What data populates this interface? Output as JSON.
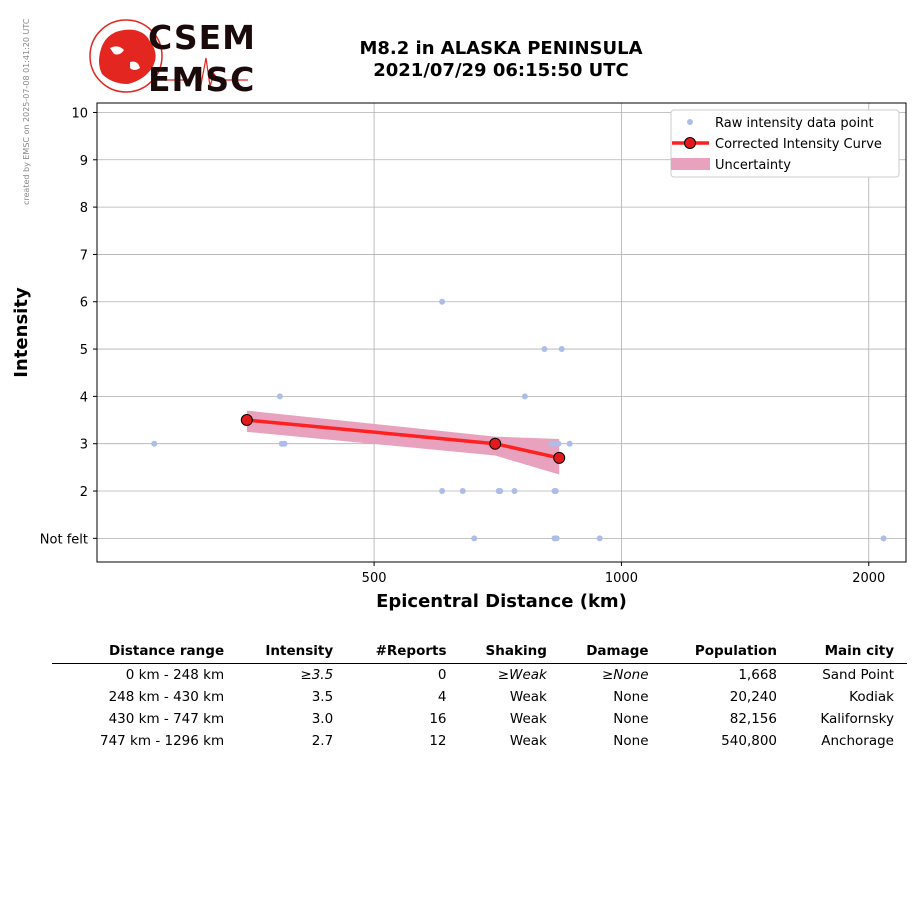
{
  "side_note": "created by EMSC on 2025-07-08 01:41:20 UTC",
  "logo": {
    "line1": "CSEM",
    "line2": "EMSC"
  },
  "title": {
    "line1": "M8.2 in ALASKA PENINSULA",
    "line2": "2021/07/29 06:15:50 UTC"
  },
  "colors": {
    "raw": "#aebde8",
    "curve": "#ff2020",
    "marker": "#e31a1c",
    "uncertainty": "#e8a2bd",
    "grid": "#b0b0b0",
    "logo_red": "#e3261f"
  },
  "chart_data": {
    "type": "scatter",
    "xlabel": "Epicentral Distance (km)",
    "ylabel": "Intensity",
    "x_scale": "log",
    "xlim": [
      230,
      2220
    ],
    "ylim": [
      0.5,
      10.2
    ],
    "x_ticks": [
      500,
      1000,
      2000
    ],
    "y_ticks": [
      {
        "value": 1,
        "label": "Not felt"
      },
      {
        "value": 2,
        "label": "2"
      },
      {
        "value": 3,
        "label": "3"
      },
      {
        "value": 4,
        "label": "4"
      },
      {
        "value": 5,
        "label": "5"
      },
      {
        "value": 6,
        "label": "6"
      },
      {
        "value": 7,
        "label": "7"
      },
      {
        "value": 8,
        "label": "8"
      },
      {
        "value": 9,
        "label": "9"
      },
      {
        "value": 10,
        "label": "10"
      }
    ],
    "grid": true,
    "legend_position": "top-right",
    "legend": [
      "Raw intensity data point",
      "Corrected Intensity Curve",
      "Uncertainty"
    ],
    "series": [
      {
        "name": "Raw intensity data point",
        "points": [
          [
            270,
            3
          ],
          [
            384,
            4
          ],
          [
            386,
            3
          ],
          [
            389,
            3
          ],
          [
            605,
            6
          ],
          [
            605,
            2
          ],
          [
            641,
            2
          ],
          [
            662,
            1
          ],
          [
            709,
            2
          ],
          [
            712,
            2
          ],
          [
            741,
            2
          ],
          [
            763,
            4
          ],
          [
            806,
            5
          ],
          [
            822,
            3
          ],
          [
            828,
            3
          ],
          [
            829,
            2
          ],
          [
            829,
            1
          ],
          [
            832,
            2
          ],
          [
            834,
            1
          ],
          [
            838,
            3
          ],
          [
            846,
            5
          ],
          [
            865,
            3
          ],
          [
            941,
            1
          ],
          [
            2085,
            1
          ]
        ]
      },
      {
        "name": "Corrected Intensity Curve",
        "points": [
          [
            350,
            3.5
          ],
          [
            702,
            3.0
          ],
          [
            840,
            2.7
          ]
        ]
      },
      {
        "name": "Uncertainty",
        "upper": [
          [
            350,
            3.7
          ],
          [
            702,
            3.15
          ],
          [
            840,
            3.1
          ]
        ],
        "lower": [
          [
            350,
            3.25
          ],
          [
            702,
            2.75
          ],
          [
            840,
            2.35
          ]
        ]
      }
    ]
  },
  "table": {
    "headers": [
      "Distance range",
      "Intensity",
      "#Reports",
      "Shaking",
      "Damage",
      "Population",
      "Main city"
    ],
    "rows": [
      [
        "0 km -  248 km",
        "≥3.5",
        "0",
        "≥Weak",
        "≥None",
        "1,668",
        "Sand Point"
      ],
      [
        "248 km -  430 km",
        "3.5",
        "4",
        "Weak",
        "None",
        "20,240",
        "Kodiak"
      ],
      [
        "430 km -  747 km",
        "3.0",
        "16",
        "Weak",
        "None",
        "82,156",
        "Kalifornsky"
      ],
      [
        "747 km - 1296 km",
        "2.7",
        "12",
        "Weak",
        "None",
        "540,800",
        "Anchorage"
      ]
    ]
  }
}
